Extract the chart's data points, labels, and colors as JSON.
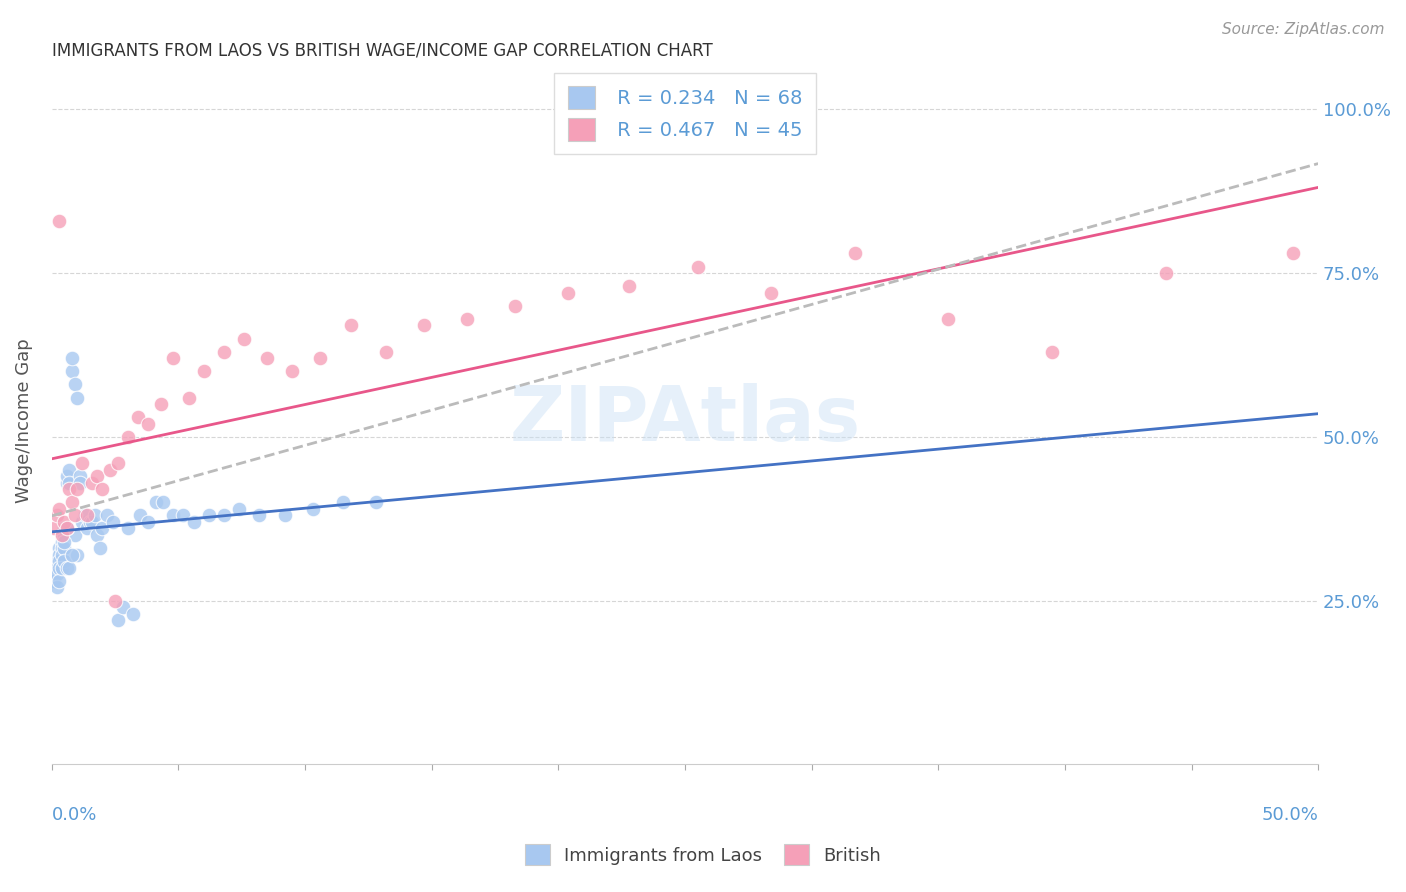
{
  "title": "IMMIGRANTS FROM LAOS VS BRITISH WAGE/INCOME GAP CORRELATION CHART",
  "source": "Source: ZipAtlas.com",
  "ylabel": "Wage/Income Gap",
  "watermark": "ZIPAtlas",
  "blue_color": "#A8C8F0",
  "pink_color": "#F5A0B8",
  "blue_line_color": "#4472C4",
  "pink_line_color": "#E8578A",
  "grey_line_color": "#BBBBBB",
  "laos_x": [
    0.001,
    0.001,
    0.001,
    0.002,
    0.002,
    0.002,
    0.002,
    0.003,
    0.003,
    0.003,
    0.003,
    0.003,
    0.004,
    0.004,
    0.004,
    0.004,
    0.004,
    0.005,
    0.005,
    0.005,
    0.005,
    0.006,
    0.006,
    0.006,
    0.007,
    0.007,
    0.007,
    0.008,
    0.008,
    0.009,
    0.009,
    0.01,
    0.01,
    0.011,
    0.011,
    0.012,
    0.013,
    0.014,
    0.015,
    0.016,
    0.017,
    0.018,
    0.019,
    0.02,
    0.022,
    0.024,
    0.026,
    0.028,
    0.03,
    0.032,
    0.035,
    0.038,
    0.041,
    0.044,
    0.048,
    0.052,
    0.056,
    0.062,
    0.068,
    0.074,
    0.082,
    0.092,
    0.103,
    0.115,
    0.128,
    0.005,
    0.006,
    0.008
  ],
  "laos_y": [
    0.3,
    0.29,
    0.28,
    0.31,
    0.3,
    0.29,
    0.27,
    0.33,
    0.32,
    0.31,
    0.3,
    0.28,
    0.35,
    0.34,
    0.33,
    0.32,
    0.3,
    0.36,
    0.35,
    0.33,
    0.31,
    0.43,
    0.44,
    0.3,
    0.45,
    0.43,
    0.3,
    0.6,
    0.62,
    0.58,
    0.35,
    0.56,
    0.32,
    0.44,
    0.43,
    0.37,
    0.38,
    0.36,
    0.37,
    0.37,
    0.38,
    0.35,
    0.33,
    0.36,
    0.38,
    0.37,
    0.22,
    0.24,
    0.36,
    0.23,
    0.38,
    0.37,
    0.4,
    0.4,
    0.38,
    0.38,
    0.37,
    0.38,
    0.38,
    0.39,
    0.38,
    0.38,
    0.39,
    0.4,
    0.4,
    0.34,
    0.36,
    0.32
  ],
  "british_x": [
    0.001,
    0.002,
    0.003,
    0.004,
    0.005,
    0.006,
    0.007,
    0.008,
    0.009,
    0.01,
    0.012,
    0.014,
    0.016,
    0.018,
    0.02,
    0.023,
    0.026,
    0.03,
    0.034,
    0.038,
    0.043,
    0.048,
    0.054,
    0.06,
    0.068,
    0.076,
    0.085,
    0.095,
    0.106,
    0.118,
    0.132,
    0.147,
    0.164,
    0.183,
    0.204,
    0.228,
    0.255,
    0.284,
    0.317,
    0.354,
    0.395,
    0.44,
    0.49,
    0.003,
    0.025
  ],
  "british_y": [
    0.36,
    0.38,
    0.39,
    0.35,
    0.37,
    0.36,
    0.42,
    0.4,
    0.38,
    0.42,
    0.46,
    0.38,
    0.43,
    0.44,
    0.42,
    0.45,
    0.46,
    0.5,
    0.53,
    0.52,
    0.55,
    0.62,
    0.56,
    0.6,
    0.63,
    0.65,
    0.62,
    0.6,
    0.62,
    0.67,
    0.63,
    0.67,
    0.68,
    0.7,
    0.72,
    0.73,
    0.76,
    0.72,
    0.78,
    0.68,
    0.63,
    0.75,
    0.78,
    0.83,
    0.25
  ],
  "xmin": 0.0,
  "xmax": 0.5,
  "ymin": 0.0,
  "ymax": 1.05,
  "ytick_positions": [
    0.25,
    0.5,
    0.75,
    1.0
  ],
  "ytick_labels": [
    "25.0%",
    "50.0%",
    "75.0%",
    "100.0%"
  ],
  "tick_color": "#5B9BD5",
  "title_fontsize": 12,
  "axis_label_fontsize": 12,
  "legend_fontsize": 14
}
